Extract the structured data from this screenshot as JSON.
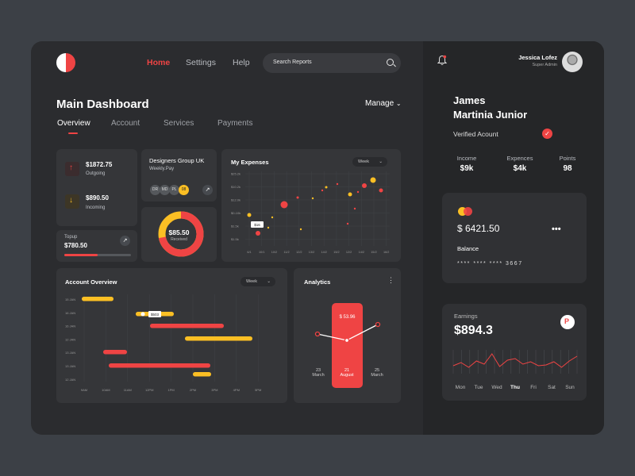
{
  "header": {
    "nav": [
      "Home",
      "Settings",
      "Help"
    ],
    "search_placeholder": "Search Reports"
  },
  "main": {
    "title": "Main Dashboard",
    "manage_label": "Manage",
    "tabs": [
      "Overview",
      "Account",
      "Services",
      "Payments"
    ]
  },
  "summary": {
    "outgoing_amount": "$1872.75",
    "outgoing_label": "Outgoing",
    "incoming_amount": "$890.50",
    "incoming_label": "Incoming"
  },
  "topup": {
    "label": "Topup",
    "amount": "$780.50",
    "progress": 0.5
  },
  "designers": {
    "title": "Designers Group UK",
    "subtitle": "Weekly.Pay",
    "members": [
      "DR",
      "MD",
      "PL",
      "08"
    ]
  },
  "received": {
    "amount": "$85.50",
    "label": "Received",
    "fraction": 0.72
  },
  "expenses": {
    "title": "My Expenses",
    "period": "Week",
    "y_ticks": [
      "$25.2k",
      "$10.2k",
      "$12.0k",
      "$0-10k",
      "$1.5k",
      "$1.5k"
    ],
    "x_ticks": [
      "6/1",
      "10/1",
      "10/2",
      "11/2",
      "12/2",
      "13/2",
      "14/2",
      "15/2",
      "12/2",
      "14/2",
      "15/2",
      "16/2"
    ],
    "tooltip": "$16"
  },
  "account_overview": {
    "title": "Account Overview",
    "period": "Week",
    "rows": [
      "15 JAN",
      "16 JAN",
      "16 JAN",
      "12 JAN",
      "13 JAN",
      "13 JAN",
      "12 JAN"
    ],
    "cols": [
      "9AM",
      "10AM",
      "11AM",
      "12PM",
      "1PM",
      "2PM",
      "3PM",
      "4PM",
      "5PM"
    ],
    "tooltip": "$503"
  },
  "analytics": {
    "title": "Analytics",
    "value": "$ 53.96",
    "days": [
      {
        "day": "23",
        "month": "March"
      },
      {
        "day": "21",
        "month": "August"
      },
      {
        "day": "25",
        "month": "March"
      }
    ]
  },
  "user": {
    "name": "Jessica Lofez",
    "role": "Super Admin",
    "profile_name_line1": "James",
    "profile_name_line2": "Martinia Junior",
    "verified": "Verified Acount",
    "stats": [
      {
        "label": "Income",
        "value": "$9k"
      },
      {
        "label": "Expences",
        "value": "$4k"
      },
      {
        "label": "Points",
        "value": "98"
      }
    ]
  },
  "card": {
    "balance": "$ 6421.50",
    "balance_label": "Balance",
    "number": "**** **** **** 3667",
    "more": "•••"
  },
  "earnings": {
    "label": "Earnings",
    "amount": "$894.3",
    "days": [
      "Mon",
      "Tue",
      "Wed",
      "Thu",
      "Fri",
      "Sat",
      "Sun"
    ],
    "accent": "#ef4444"
  },
  "colors": {
    "accent": "#ef4444",
    "yellow": "#fbbf24"
  }
}
